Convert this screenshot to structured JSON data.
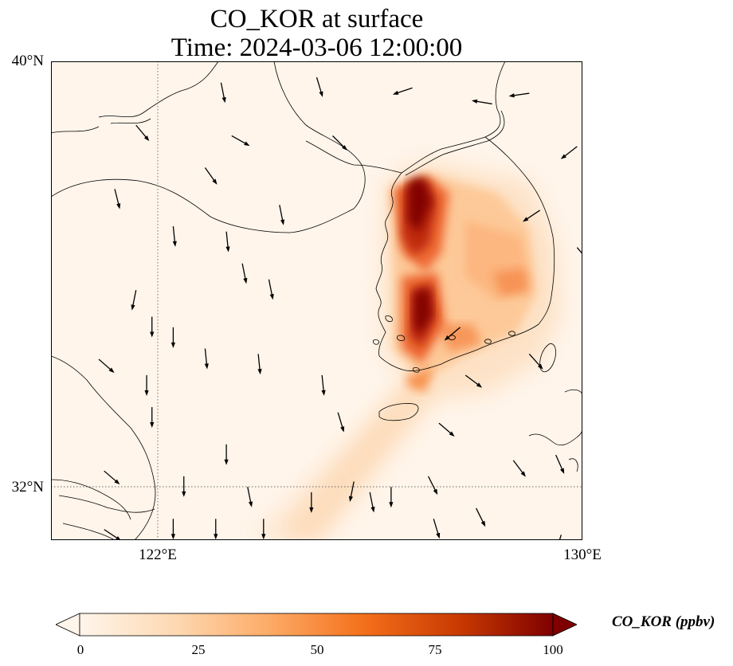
{
  "title": {
    "line1": "CO_KOR at surface",
    "line2": "Time: 2024-03-06 12:00:00"
  },
  "axes": {
    "lat_ticks": [
      "40°N",
      "32°N"
    ],
    "lon_ticks": [
      "122°E",
      "130°E"
    ],
    "lat_range": [
      31.0,
      40.0
    ],
    "lon_range": [
      120.0,
      130.0
    ],
    "gridlines": "dotted"
  },
  "colorbar": {
    "label": "CO_KOR (ppbv)",
    "ticks": [
      "0",
      "25",
      "50",
      "75",
      "100"
    ],
    "range": [
      0,
      100
    ],
    "extend": "both",
    "colormap": [
      "#fff5eb",
      "#fdd9b3",
      "#fdab67",
      "#f3701b",
      "#c93a02",
      "#7f0000"
    ]
  },
  "colors": {
    "background": "#fff5eb",
    "coastline": "#000000",
    "arrows": "#000000"
  },
  "chart_data": {
    "type": "heatmap",
    "title": "CO_KOR at surface",
    "variable_unit": "ppbv",
    "plume_hotspots": [
      {
        "lon": 126.5,
        "lat": 37.5,
        "value": 95
      },
      {
        "lon": 126.6,
        "lat": 37.0,
        "value": 90
      },
      {
        "lon": 126.9,
        "lat": 35.9,
        "value": 92
      },
      {
        "lon": 126.8,
        "lat": 35.2,
        "value": 85
      },
      {
        "lon": 126.1,
        "lat": 34.9,
        "value": 70
      },
      {
        "lon": 128.4,
        "lat": 35.9,
        "value": 55
      },
      {
        "lon": 127.5,
        "lat": 34.9,
        "value": 60
      },
      {
        "lon": 127.9,
        "lat": 37.2,
        "value": 40
      },
      {
        "lon": 126.5,
        "lat": 33.9,
        "value": 45
      }
    ],
    "plume_tail": {
      "from": [
        126.0,
        34.5
      ],
      "to": [
        124.2,
        31.0
      ],
      "value": 15
    },
    "wind_vectors": [
      [
        123.2,
        39.6,
        0.2,
        -1.0
      ],
      [
        125.0,
        39.7,
        0.3,
        -1.0
      ],
      [
        121.6,
        38.8,
        0.5,
        -0.6
      ],
      [
        123.4,
        38.6,
        0.9,
        -0.5
      ],
      [
        125.3,
        38.6,
        0.7,
        -0.7
      ],
      [
        122.9,
        38.0,
        0.5,
        -0.7
      ],
      [
        121.2,
        37.6,
        0.2,
        -0.8
      ],
      [
        122.3,
        36.9,
        0.1,
        -1.0
      ],
      [
        123.3,
        36.8,
        0.1,
        -1.0
      ],
      [
        124.3,
        37.3,
        0.2,
        -1.0
      ],
      [
        123.6,
        36.2,
        0.2,
        -1.0
      ],
      [
        124.1,
        35.9,
        0.2,
        -1.0
      ],
      [
        121.6,
        35.7,
        -0.2,
        -1.0
      ],
      [
        121.9,
        35.2,
        0.0,
        -1.0
      ],
      [
        122.3,
        35.0,
        0.0,
        -1.0
      ],
      [
        122.9,
        34.6,
        0.1,
        -1.0
      ],
      [
        123.9,
        34.5,
        0.1,
        -1.0
      ],
      [
        125.1,
        34.1,
        0.1,
        -1.0
      ],
      [
        125.4,
        33.4,
        0.3,
        -1.0
      ],
      [
        121.9,
        33.5,
        0.0,
        -1.0
      ],
      [
        123.3,
        32.8,
        0.0,
        -1.0
      ],
      [
        122.5,
        32.2,
        0.0,
        -1.0
      ],
      [
        123.7,
        32.0,
        0.2,
        -1.0
      ],
      [
        122.3,
        31.4,
        0.0,
        -1.0
      ],
      [
        123.1,
        31.4,
        0.0,
        -1.0
      ],
      [
        124.0,
        31.4,
        0.0,
        -1.0
      ],
      [
        124.9,
        31.9,
        0.0,
        -1.0
      ],
      [
        126.4,
        32.0,
        0.0,
        -1.0
      ],
      [
        127.2,
        31.4,
        0.3,
        -1.0
      ],
      [
        128.0,
        31.6,
        0.5,
        -1.0
      ],
      [
        128.7,
        32.5,
        0.6,
        -0.8
      ],
      [
        129.5,
        32.6,
        0.4,
        -0.9
      ],
      [
        127.1,
        32.2,
        0.5,
        -1.0
      ],
      [
        127.8,
        34.1,
        0.8,
        -0.6
      ],
      [
        129.0,
        34.5,
        0.8,
        -0.9
      ],
      [
        127.3,
        33.2,
        0.7,
        -0.6
      ],
      [
        126.0,
        31.9,
        0.2,
        -1.0
      ],
      [
        121.0,
        32.3,
        0.7,
        -0.6
      ],
      [
        121.0,
        31.2,
        0.9,
        -0.6
      ],
      [
        127.7,
        35.0,
        -0.6,
        -0.5
      ],
      [
        120.9,
        34.4,
        0.8,
        -0.7
      ],
      [
        129.2,
        37.2,
        -0.6,
        -0.4
      ],
      [
        129.9,
        36.5,
        0.6,
        -0.7
      ],
      [
        128.3,
        39.2,
        -0.6,
        0.1
      ],
      [
        126.8,
        39.5,
        -0.6,
        -0.2
      ],
      [
        129.0,
        39.4,
        -0.7,
        -0.1
      ],
      [
        129.9,
        38.4,
        -0.9,
        -0.7
      ],
      [
        121.8,
        34.1,
        0.0,
        -1.0
      ],
      [
        125.7,
        32.1,
        -0.2,
        -1.0
      ],
      [
        129.6,
        31.1,
        -0.3,
        -1.0
      ]
    ]
  }
}
